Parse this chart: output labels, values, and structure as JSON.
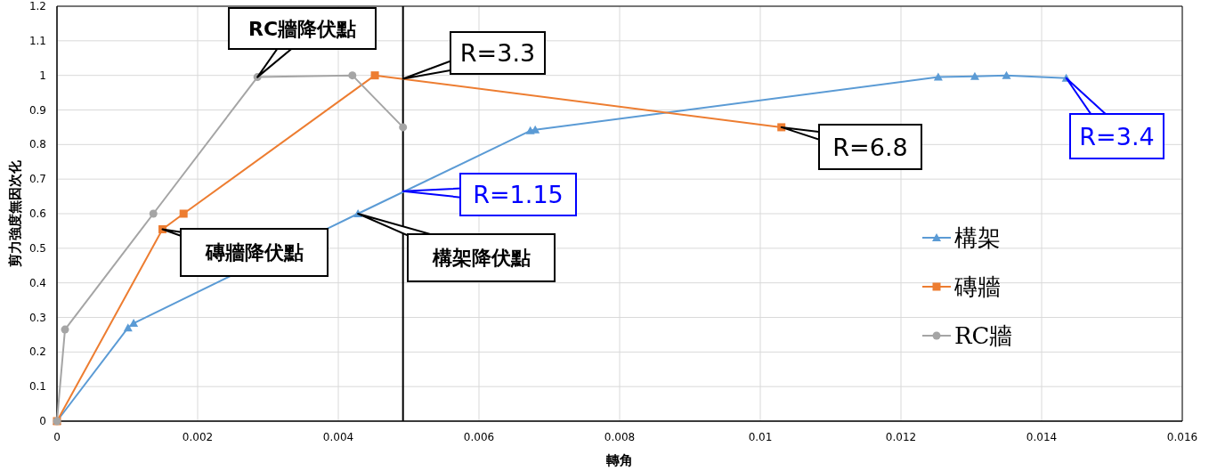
{
  "chart_data": {
    "type": "line",
    "xlabel": "轉角",
    "ylabel": "剪力強度無因次化",
    "xlim": [
      0,
      0.016
    ],
    "xticks": [
      0,
      0.002,
      0.004,
      0.006,
      0.008,
      0.01,
      0.012,
      0.014,
      0.016
    ],
    "ylim": [
      0,
      1.2
    ],
    "yticks": [
      0,
      0.1,
      0.2,
      0.3,
      0.4,
      0.5,
      0.6,
      0.7,
      0.8,
      0.9,
      1,
      1.1,
      1.2
    ],
    "grid": true,
    "legend": "right",
    "line_style": "solid",
    "series": [
      {
        "name": "構架",
        "color": "#5b9bd5",
        "marker": "triangle",
        "x": [
          0,
          0.00101,
          0.00109,
          0.00428,
          0.00673,
          0.0068,
          0.01253,
          0.01305,
          0.0135,
          0.01435
        ],
        "values": [
          0,
          0.27,
          0.283,
          0.6,
          0.84,
          0.843,
          0.995,
          0.997,
          1.0,
          0.992
        ]
      },
      {
        "name": "磚牆",
        "color": "#ed7d31",
        "marker": "square",
        "x": [
          0,
          0.0015,
          0.0018,
          0.00452,
          0.0103
        ],
        "values": [
          0,
          0.555,
          0.6,
          1.0,
          0.85
        ]
      },
      {
        "name": "RC牆",
        "color": "#a5a5a5",
        "marker": "circle",
        "x": [
          0,
          0.000114,
          0.00137,
          0.00285,
          0.0042,
          0.00492
        ],
        "values": [
          0,
          0.265,
          0.6,
          0.995,
          1.0,
          0.85
        ]
      }
    ],
    "ref_lines": [
      {
        "axis": "x",
        "value": 0.00492,
        "color": "#000000"
      }
    ],
    "annotations": [
      {
        "text": "RC牆降伏點",
        "x": 0.00285,
        "y": 0.995
      },
      {
        "text": "R=3.3",
        "x": 0.00492,
        "y": 0.99
      },
      {
        "text": "磚牆降伏點",
        "x": 0.0015,
        "y": 0.555
      },
      {
        "text": "R=1.15",
        "x": 0.00492,
        "y": 0.665
      },
      {
        "text": "構架降伏點",
        "x": 0.00428,
        "y": 0.6
      },
      {
        "text": "R=6.8",
        "x": 0.0103,
        "y": 0.85
      },
      {
        "text": "R=3.4",
        "x": 0.01435,
        "y": 0.992
      }
    ]
  }
}
